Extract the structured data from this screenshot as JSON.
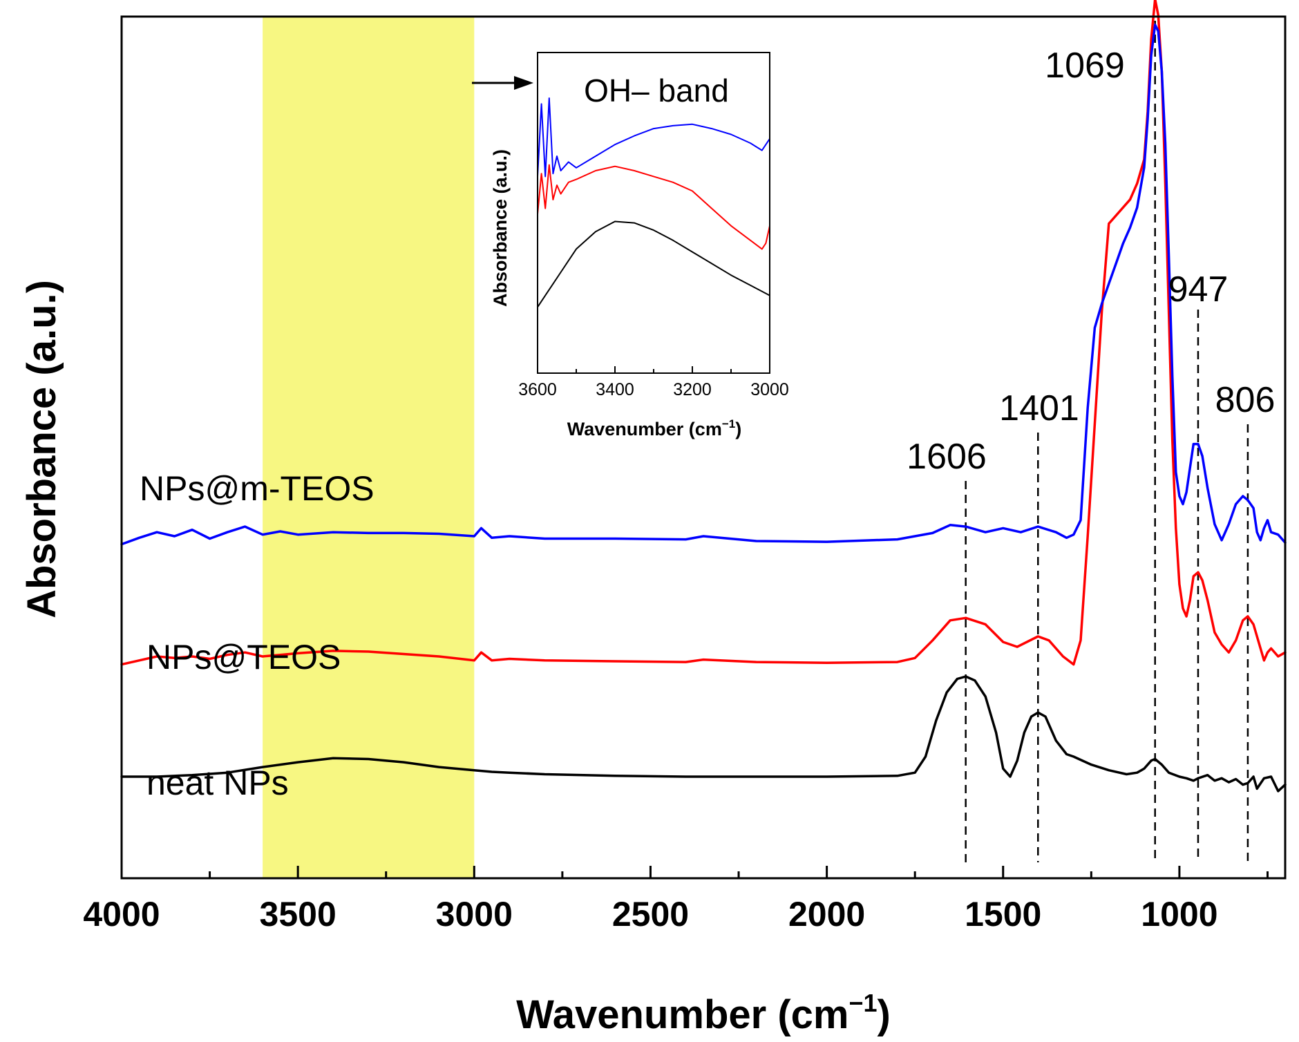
{
  "chart_data": [
    {
      "type": "line",
      "title": "",
      "xlabel": "Wavenumber (cm",
      "xlabel_sup": "−1",
      "xlabel_close": ")",
      "ylabel": "Absorbance (a.u.)",
      "xlim": [
        4000,
        700
      ],
      "ylim": [
        0,
        10
      ],
      "x_ticks": [
        4000,
        3500,
        3000,
        2500,
        2000,
        1500,
        1000
      ],
      "y_ticks_shown": false,
      "highlight_band": {
        "from": 3600,
        "to": 3000,
        "color": "#f7f782"
      },
      "series": [
        {
          "name": "NPs@m-TEOS",
          "color": "#0000ff",
          "x": [
            4000,
            3950,
            3900,
            3850,
            3800,
            3750,
            3700,
            3650,
            3600,
            3550,
            3500,
            3400,
            3300,
            3200,
            3100,
            3000,
            2980,
            2950,
            2900,
            2800,
            2600,
            2400,
            2350,
            2200,
            2000,
            1800,
            1700,
            1650,
            1606,
            1550,
            1500,
            1450,
            1401,
            1350,
            1320,
            1300,
            1280,
            1260,
            1240,
            1220,
            1200,
            1180,
            1160,
            1140,
            1120,
            1100,
            1090,
            1080,
            1069,
            1060,
            1050,
            1040,
            1030,
            1020,
            1010,
            1000,
            990,
            980,
            970,
            960,
            947,
            935,
            920,
            900,
            880,
            860,
            840,
            820,
            806,
            790,
            780,
            770,
            760,
            750,
            740,
            720,
            700
          ],
          "y": [
            3.9,
            3.98,
            4.05,
            4.0,
            4.08,
            3.97,
            4.05,
            4.12,
            4.02,
            4.06,
            4.02,
            4.05,
            4.04,
            4.04,
            4.03,
            4.0,
            4.1,
            3.98,
            4.0,
            3.97,
            3.97,
            3.96,
            4.0,
            3.94,
            3.93,
            3.96,
            4.04,
            4.14,
            4.12,
            4.05,
            4.1,
            4.05,
            4.12,
            4.05,
            3.98,
            4.02,
            4.2,
            5.6,
            6.6,
            6.9,
            7.15,
            7.4,
            7.65,
            7.85,
            8.1,
            8.6,
            9.2,
            10.0,
            10.38,
            10.3,
            9.8,
            8.9,
            7.5,
            6.0,
            4.8,
            4.5,
            4.4,
            4.55,
            4.85,
            5.15,
            5.15,
            5.0,
            4.6,
            4.15,
            3.95,
            4.15,
            4.4,
            4.5,
            4.45,
            4.35,
            4.05,
            3.95,
            4.1,
            4.2,
            4.05,
            4.02,
            3.92
          ]
        },
        {
          "name": "NPs@TEOS",
          "color": "#ff0000",
          "x": [
            4000,
            3950,
            3900,
            3850,
            3800,
            3750,
            3700,
            3650,
            3600,
            3550,
            3500,
            3400,
            3300,
            3200,
            3100,
            3000,
            2980,
            2950,
            2900,
            2800,
            2600,
            2400,
            2350,
            2200,
            2000,
            1800,
            1750,
            1700,
            1650,
            1606,
            1550,
            1500,
            1460,
            1401,
            1370,
            1330,
            1300,
            1280,
            1260,
            1240,
            1220,
            1200,
            1180,
            1160,
            1140,
            1120,
            1100,
            1090,
            1080,
            1069,
            1060,
            1050,
            1040,
            1030,
            1020,
            1010,
            1000,
            990,
            980,
            970,
            960,
            947,
            935,
            920,
            900,
            880,
            860,
            840,
            820,
            806,
            790,
            780,
            770,
            760,
            750,
            740,
            720,
            700
          ],
          "y": [
            2.4,
            2.45,
            2.5,
            2.48,
            2.5,
            2.47,
            2.52,
            2.55,
            2.5,
            2.52,
            2.54,
            2.57,
            2.56,
            2.53,
            2.5,
            2.45,
            2.55,
            2.45,
            2.47,
            2.45,
            2.44,
            2.43,
            2.46,
            2.43,
            2.42,
            2.43,
            2.48,
            2.7,
            2.95,
            2.98,
            2.9,
            2.68,
            2.62,
            2.75,
            2.7,
            2.5,
            2.4,
            2.7,
            4.0,
            5.4,
            6.8,
            7.9,
            8.0,
            8.1,
            8.2,
            8.4,
            8.7,
            9.3,
            10.2,
            10.7,
            10.5,
            9.8,
            8.4,
            6.8,
            5.2,
            4.1,
            3.4,
            3.1,
            3.0,
            3.2,
            3.5,
            3.55,
            3.45,
            3.2,
            2.8,
            2.65,
            2.55,
            2.7,
            2.95,
            3.0,
            2.9,
            2.75,
            2.6,
            2.45,
            2.55,
            2.6,
            2.5,
            2.55
          ]
        },
        {
          "name": "neat NPs",
          "color": "#000000",
          "x": [
            4000,
            3900,
            3800,
            3700,
            3600,
            3500,
            3400,
            3300,
            3200,
            3100,
            3000,
            2950,
            2900,
            2800,
            2600,
            2400,
            2200,
            2000,
            1800,
            1750,
            1720,
            1690,
            1660,
            1630,
            1606,
            1580,
            1550,
            1520,
            1500,
            1480,
            1460,
            1440,
            1420,
            1401,
            1380,
            1350,
            1320,
            1300,
            1250,
            1200,
            1150,
            1120,
            1100,
            1080,
            1069,
            1050,
            1030,
            1000,
            980,
            960,
            947,
            920,
            900,
            880,
            860,
            840,
            820,
            806,
            790,
            780,
            760,
            740,
            720,
            700
          ],
          "y": [
            1.0,
            1.0,
            1.02,
            1.05,
            1.12,
            1.18,
            1.23,
            1.22,
            1.18,
            1.12,
            1.08,
            1.06,
            1.05,
            1.03,
            1.01,
            1.0,
            1.0,
            1.0,
            1.01,
            1.05,
            1.25,
            1.7,
            2.05,
            2.22,
            2.25,
            2.2,
            2.0,
            1.55,
            1.1,
            1.0,
            1.2,
            1.55,
            1.75,
            1.8,
            1.75,
            1.45,
            1.28,
            1.25,
            1.15,
            1.08,
            1.03,
            1.05,
            1.1,
            1.2,
            1.22,
            1.15,
            1.05,
            1.0,
            0.98,
            0.95,
            0.98,
            1.02,
            0.95,
            0.98,
            0.93,
            0.97,
            0.9,
            0.92,
            1.0,
            0.85,
            0.98,
            1.0,
            0.82,
            0.9
          ]
        }
      ],
      "series_labels": [
        "NPs@m-TEOS",
        "NPs@TEOS",
        "neat NPs"
      ],
      "peak_annotations": [
        {
          "x": 1606,
          "label": "1606"
        },
        {
          "x": 1401,
          "label": "1401"
        },
        {
          "x": 1069,
          "label": "1069"
        },
        {
          "x": 947,
          "label": "947"
        },
        {
          "x": 806,
          "label": "806"
        }
      ]
    },
    {
      "type": "line",
      "role": "inset",
      "title": "OH–  band",
      "xlabel": "Wavenumber (cm",
      "xlabel_sup": "−1",
      "xlabel_close": ")",
      "ylabel": "Absorbance (a.u.)",
      "xlim": [
        3600,
        3000
      ],
      "ylim": [
        0,
        10
      ],
      "x_ticks": [
        3600,
        3400,
        3200,
        3000
      ],
      "series": [
        {
          "name": "NPs@m-TEOS",
          "color": "#0000ff",
          "x": [
            3600,
            3590,
            3580,
            3570,
            3560,
            3550,
            3540,
            3520,
            3500,
            3450,
            3400,
            3350,
            3300,
            3250,
            3200,
            3150,
            3100,
            3050,
            3020,
            3010,
            3000
          ],
          "y": [
            6.3,
            8.8,
            6.3,
            9.0,
            6.4,
            7.0,
            6.5,
            6.8,
            6.6,
            7.0,
            7.4,
            7.7,
            7.95,
            8.05,
            8.1,
            7.95,
            7.75,
            7.45,
            7.2,
            7.4,
            7.6
          ]
        },
        {
          "name": "NPs@TEOS",
          "color": "#ff0000",
          "x": [
            3600,
            3590,
            3580,
            3570,
            3560,
            3550,
            3540,
            3520,
            3500,
            3450,
            3400,
            3350,
            3300,
            3250,
            3200,
            3150,
            3100,
            3050,
            3020,
            3010,
            3000
          ],
          "y": [
            5.0,
            6.4,
            5.2,
            6.7,
            5.5,
            6.0,
            5.7,
            6.1,
            6.2,
            6.5,
            6.65,
            6.5,
            6.3,
            6.1,
            5.8,
            5.2,
            4.6,
            4.1,
            3.8,
            4.0,
            4.6
          ]
        },
        {
          "name": "neat NPs",
          "color": "#000000",
          "x": [
            3600,
            3580,
            3560,
            3540,
            3520,
            3500,
            3450,
            3400,
            3350,
            3300,
            3250,
            3200,
            3150,
            3100,
            3050,
            3000
          ],
          "y": [
            1.8,
            2.2,
            2.6,
            3.0,
            3.4,
            3.8,
            4.4,
            4.75,
            4.7,
            4.45,
            4.1,
            3.7,
            3.3,
            2.9,
            2.55,
            2.2
          ]
        }
      ]
    }
  ]
}
